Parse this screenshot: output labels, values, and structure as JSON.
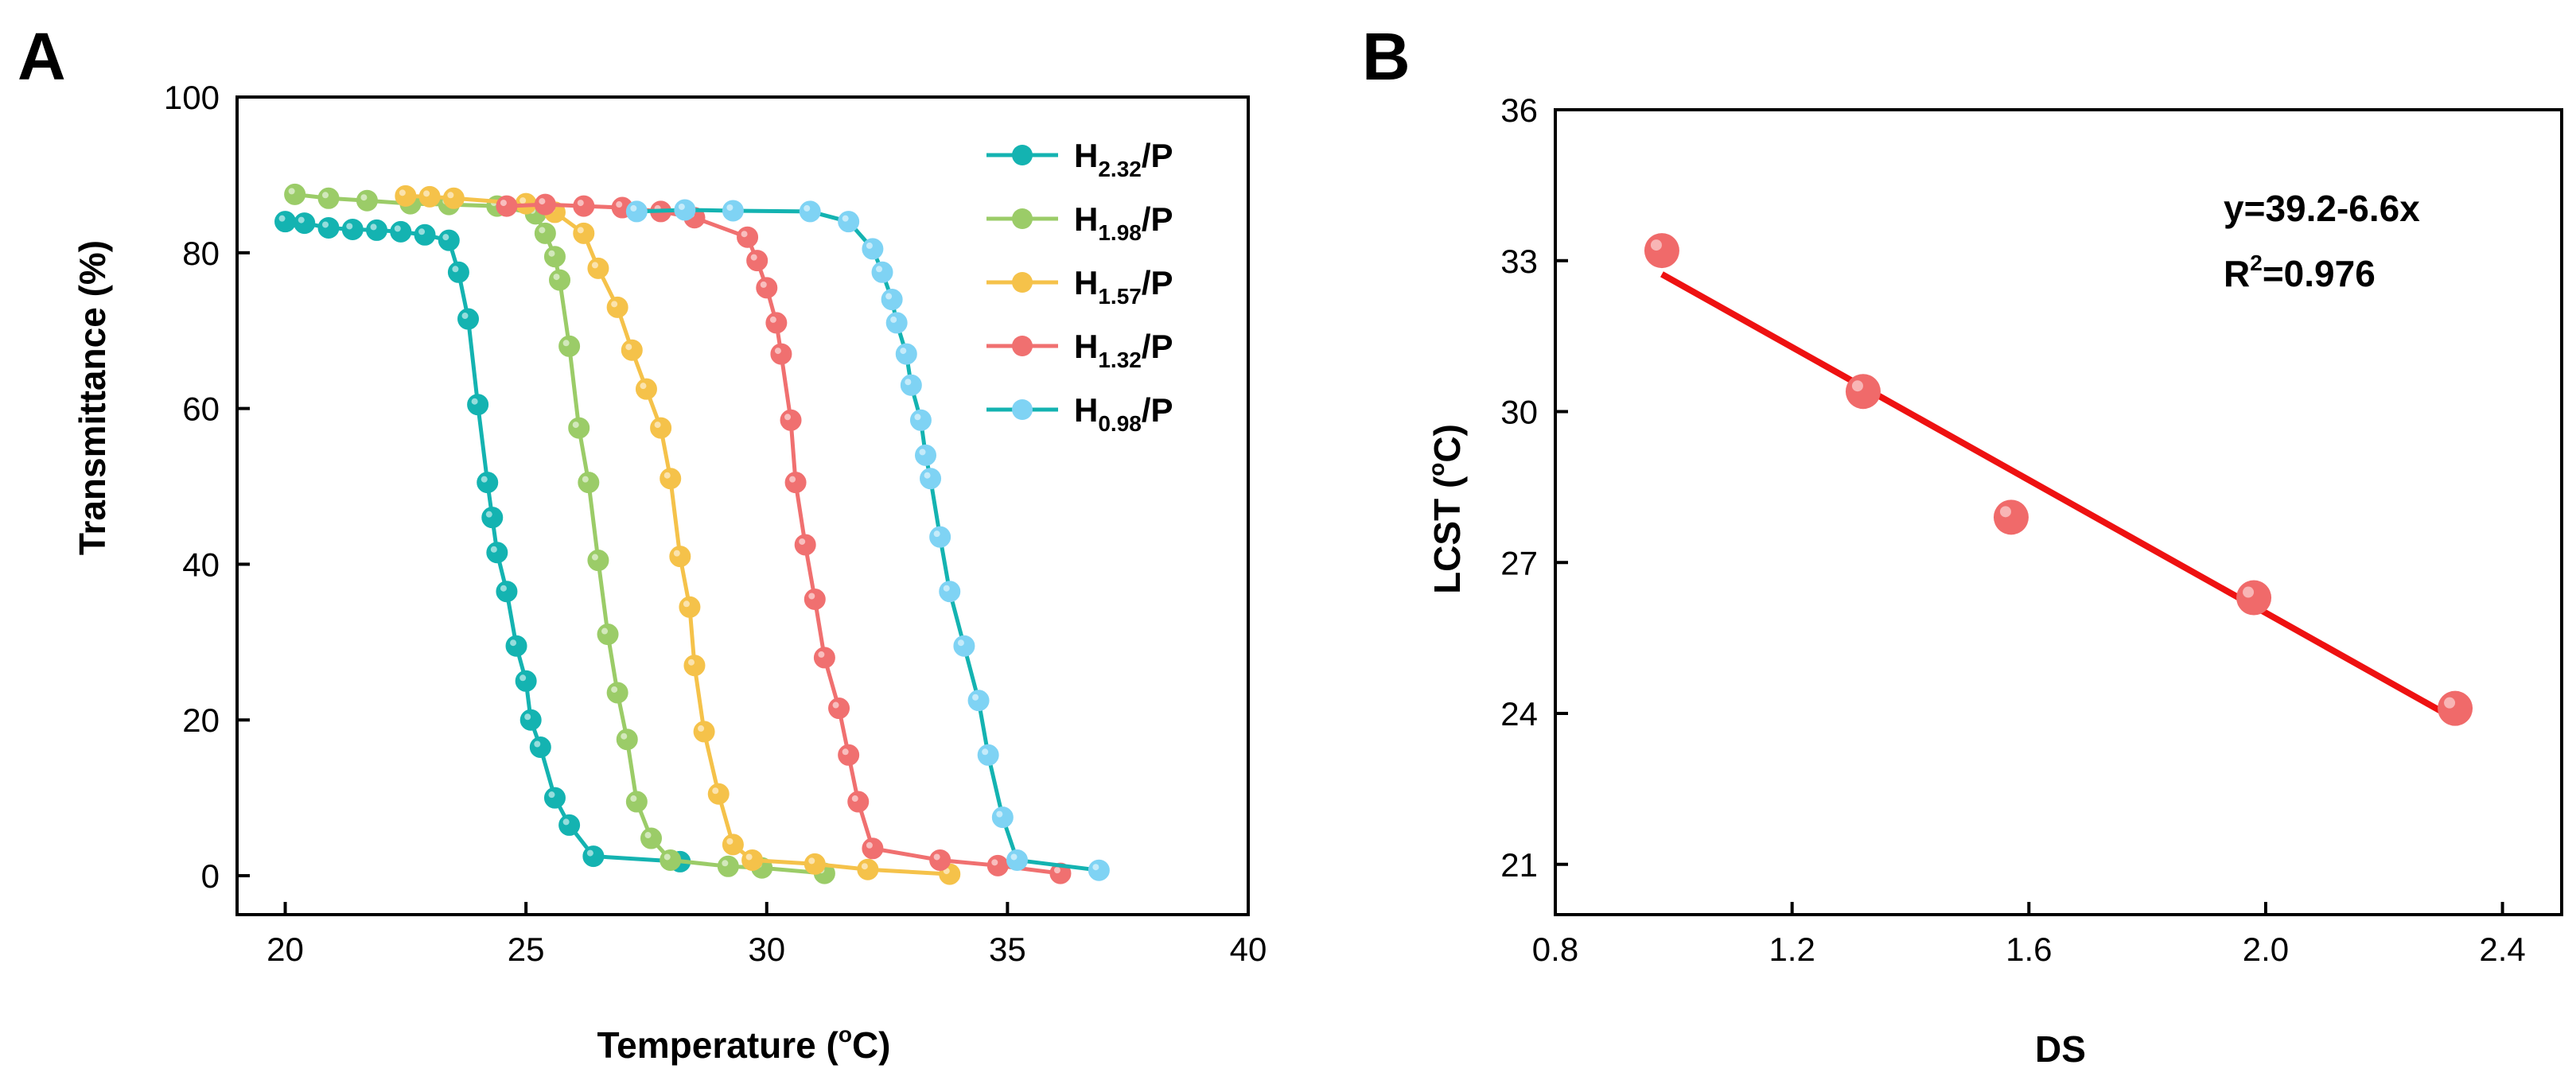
{
  "panels": [
    {
      "letter": "A",
      "chart_data": {
        "type": "line",
        "title": "",
        "xlabel": "Temperature (",
        "xlabel_sup": "o",
        "xlabel_tail": "C)",
        "ylabel": "Transmittance (%)",
        "xlim": [
          19,
          40
        ],
        "ylim": [
          -5,
          100
        ],
        "xticks": [
          20,
          25,
          30,
          35,
          40
        ],
        "yticks": [
          0,
          20,
          40,
          60,
          80,
          100
        ],
        "legend_position": "top-right",
        "series": [
          {
            "name": "2.32",
            "label_prefix": "H",
            "label_suffix": "/P",
            "line_color": "#14b3b1",
            "marker_color": "#14b3b1",
            "points": [
              [
                20.0,
                84.0
              ],
              [
                20.4,
                83.8
              ],
              [
                20.9,
                83.2
              ],
              [
                21.4,
                83.0
              ],
              [
                21.9,
                82.9
              ],
              [
                22.4,
                82.7
              ],
              [
                22.9,
                82.3
              ],
              [
                23.4,
                81.6
              ],
              [
                23.6,
                77.5
              ],
              [
                23.8,
                71.5
              ],
              [
                24.0,
                60.5
              ],
              [
                24.2,
                50.5
              ],
              [
                24.3,
                46.0
              ],
              [
                24.4,
                41.5
              ],
              [
                24.6,
                36.5
              ],
              [
                24.8,
                29.5
              ],
              [
                25.0,
                25.0
              ],
              [
                25.1,
                20.0
              ],
              [
                25.3,
                16.5
              ],
              [
                25.6,
                10.0
              ],
              [
                25.9,
                6.5
              ],
              [
                26.4,
                2.5
              ],
              [
                28.2,
                1.8
              ]
            ]
          },
          {
            "name": "1.98",
            "label_prefix": "H",
            "label_suffix": "/P",
            "line_color": "#9bcc68",
            "marker_color": "#9bcc68",
            "points": [
              [
                20.2,
                87.5
              ],
              [
                20.9,
                87.0
              ],
              [
                21.7,
                86.7
              ],
              [
                22.6,
                86.3
              ],
              [
                23.4,
                86.2
              ],
              [
                24.4,
                86.0
              ],
              [
                25.2,
                85.0
              ],
              [
                25.4,
                82.5
              ],
              [
                25.6,
                79.5
              ],
              [
                25.7,
                76.5
              ],
              [
                25.9,
                68.0
              ],
              [
                26.1,
                57.5
              ],
              [
                26.3,
                50.5
              ],
              [
                26.5,
                40.5
              ],
              [
                26.7,
                31.0
              ],
              [
                26.9,
                23.5
              ],
              [
                27.1,
                17.5
              ],
              [
                27.3,
                9.5
              ],
              [
                27.6,
                4.8
              ],
              [
                28.0,
                2.0
              ],
              [
                29.2,
                1.2
              ],
              [
                29.9,
                1.0
              ],
              [
                31.2,
                0.3
              ]
            ]
          },
          {
            "name": "1.57",
            "label_prefix": "H",
            "label_suffix": "/P",
            "line_color": "#f5c24a",
            "marker_color": "#f5c24a",
            "points": [
              [
                22.5,
                87.3
              ],
              [
                23.0,
                87.2
              ],
              [
                23.5,
                87.0
              ],
              [
                25.0,
                86.3
              ],
              [
                25.6,
                85.2
              ],
              [
                26.2,
                82.5
              ],
              [
                26.5,
                78.0
              ],
              [
                26.9,
                73.0
              ],
              [
                27.2,
                67.5
              ],
              [
                27.5,
                62.5
              ],
              [
                27.8,
                57.5
              ],
              [
                28.0,
                51.0
              ],
              [
                28.2,
                41.0
              ],
              [
                28.4,
                34.5
              ],
              [
                28.5,
                27.0
              ],
              [
                28.7,
                18.5
              ],
              [
                29.0,
                10.5
              ],
              [
                29.3,
                4.0
              ],
              [
                29.7,
                2.0
              ],
              [
                31.0,
                1.5
              ],
              [
                32.1,
                0.8
              ],
              [
                33.8,
                0.2
              ]
            ]
          },
          {
            "name": "1.32",
            "label_prefix": "H",
            "label_suffix": "/P",
            "line_color": "#f07070",
            "marker_color": "#f07070",
            "points": [
              [
                24.6,
                86.0
              ],
              [
                25.4,
                86.2
              ],
              [
                26.2,
                86.0
              ],
              [
                27.0,
                85.8
              ],
              [
                27.8,
                85.3
              ],
              [
                28.5,
                84.5
              ],
              [
                29.6,
                82.0
              ],
              [
                29.8,
                79.0
              ],
              [
                30.0,
                75.5
              ],
              [
                30.2,
                71.0
              ],
              [
                30.3,
                67.0
              ],
              [
                30.5,
                58.5
              ],
              [
                30.6,
                50.5
              ],
              [
                30.8,
                42.5
              ],
              [
                31.0,
                35.5
              ],
              [
                31.2,
                28.0
              ],
              [
                31.5,
                21.5
              ],
              [
                31.7,
                15.5
              ],
              [
                31.9,
                9.5
              ],
              [
                32.2,
                3.5
              ],
              [
                33.6,
                2.0
              ],
              [
                34.8,
                1.3
              ],
              [
                36.1,
                0.3
              ]
            ]
          },
          {
            "name": "0.98",
            "label_prefix": "H",
            "label_suffix": "/P",
            "line_color": "#14b3b1",
            "marker_color": "#7fd3f4",
            "points": [
              [
                27.3,
                85.3
              ],
              [
                28.3,
                85.5
              ],
              [
                29.3,
                85.4
              ],
              [
                30.9,
                85.3
              ],
              [
                31.7,
                84.0
              ],
              [
                32.2,
                80.5
              ],
              [
                32.4,
                77.5
              ],
              [
                32.6,
                74.0
              ],
              [
                32.7,
                71.0
              ],
              [
                32.9,
                67.0
              ],
              [
                33.0,
                63.0
              ],
              [
                33.2,
                58.5
              ],
              [
                33.3,
                54.0
              ],
              [
                33.4,
                51.0
              ],
              [
                33.6,
                43.5
              ],
              [
                33.8,
                36.5
              ],
              [
                34.1,
                29.5
              ],
              [
                34.4,
                22.5
              ],
              [
                34.6,
                15.5
              ],
              [
                34.9,
                7.5
              ],
              [
                35.2,
                2.0
              ],
              [
                36.9,
                0.7
              ]
            ]
          }
        ]
      }
    },
    {
      "letter": "B",
      "chart_data": {
        "type": "scatter",
        "title": "",
        "xlabel": "DS",
        "ylabel": "LCST  (",
        "ylabel_sup": "o",
        "ylabel_tail": "C)",
        "xlim": [
          0.8,
          2.5
        ],
        "ylim": [
          20,
          36
        ],
        "xticks": [
          "0.8",
          "1.2",
          "1.6",
          "2.0",
          "2.4"
        ],
        "yticks": [
          "21",
          "24",
          "27",
          "30",
          "33",
          "36"
        ],
        "marker_color": "#f06a6a",
        "fit_line_color": "#ee1111",
        "points": [
          [
            0.98,
            33.2
          ],
          [
            1.32,
            30.4
          ],
          [
            1.57,
            27.9
          ],
          [
            1.98,
            26.3
          ],
          [
            2.32,
            24.1
          ]
        ],
        "fit": {
          "intercept": 39.2,
          "slope": -6.6,
          "x_range": [
            0.98,
            2.32
          ]
        },
        "equation": "y=39.2-6.6x",
        "r2_prefix": "R",
        "r2_sup": "2",
        "r2_value": "=0.976"
      }
    }
  ]
}
